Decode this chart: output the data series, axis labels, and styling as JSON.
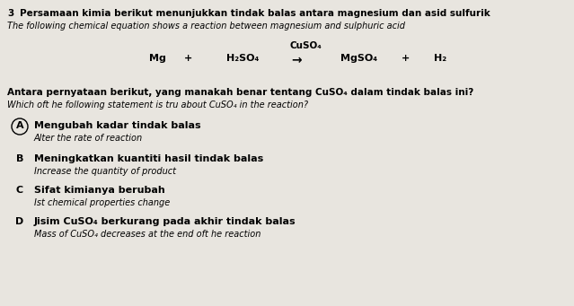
{
  "bg_color": "#e8e5df",
  "question_number": "3",
  "title_malay": "Persamaan kimia berikut menunjukkan tindak balas antara magnesium dan asid sulfurik",
  "title_english": "The following chemical equation shows a reaction between magnesium and sulphuric acid",
  "catalyst": "CuSO₄",
  "question_malay": "Antara pernyataan berikut, yang manakah benar tentang CuSO₄ dalam tindak balas ini?",
  "question_english": "Which oft he following statement is tru about CuSO₄ in the reaction?",
  "options": [
    {
      "letter": "A",
      "text_malay": "Mengubah kadar tindak balas",
      "text_english": "Alter the rate of reaction",
      "circled": true
    },
    {
      "letter": "B",
      "text_malay": "Meningkatkan kuantiti hasil tindak balas",
      "text_english": "Increase the quantity of product",
      "circled": false
    },
    {
      "letter": "C",
      "text_malay": "Sifat kimianya berubah",
      "text_english": "Ist chemical properties change",
      "circled": false
    },
    {
      "letter": "D",
      "text_malay": "Jisim CuSO₄ berkurang pada akhir tindak balas",
      "text_english": "Mass of CuSO₄ decreases at the end oft he reaction",
      "circled": false
    }
  ],
  "figsize": [
    6.39,
    3.41
  ],
  "dpi": 100
}
